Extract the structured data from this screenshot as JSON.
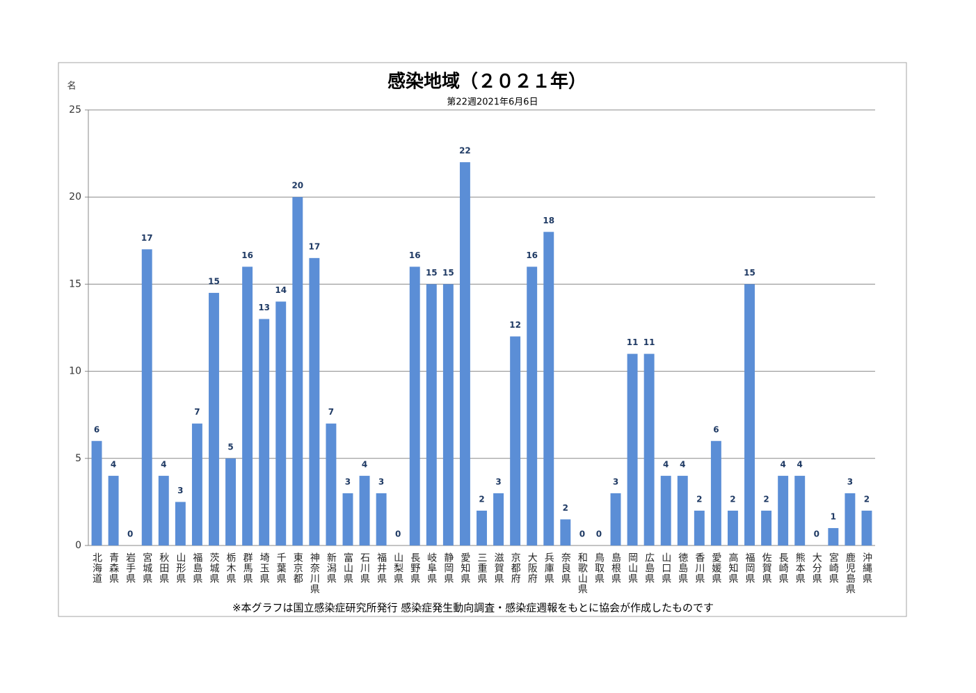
{
  "chart_data": {
    "type": "bar",
    "title": "感染地域（２０２１年）",
    "subtitle": "第22週2021年6月6日",
    "y_label": "名",
    "footnote": "※本グラフは国立感染症研究所発行 感染症発生動向調査・感染症週報をもとに協会が作成したものです",
    "categories": [
      "北海道",
      "青森県",
      "岩手県",
      "宮城県",
      "秋田県",
      "山形県",
      "福島県",
      "茨城県",
      "栃木県",
      "群馬県",
      "埼玉県",
      "千葉県",
      "東京都",
      "神奈川県",
      "新潟県",
      "富山県",
      "石川県",
      "福井県",
      "山梨県",
      "長野県",
      "岐阜県",
      "静岡県",
      "愛知県",
      "三重県",
      "滋賀県",
      "京都府",
      "大阪府",
      "兵庫県",
      "奈良県",
      "和歌山県",
      "鳥取県",
      "島根県",
      "岡山県",
      "広島県",
      "山口県",
      "徳島県",
      "香川県",
      "愛媛県",
      "高知県",
      "福岡県",
      "佐賀県",
      "長崎県",
      "熊本県",
      "大分県",
      "宮崎県",
      "鹿児島県",
      "沖縄県"
    ],
    "values": [
      6,
      4,
      0,
      17,
      4,
      2.5,
      7,
      14.5,
      5,
      16,
      13,
      14,
      20,
      16.5,
      7,
      3,
      4,
      3,
      0,
      16,
      15,
      15,
      22,
      2,
      3,
      12,
      16,
      18,
      1.5,
      0,
      0,
      3,
      11,
      11,
      4,
      4,
      2,
      6,
      2,
      15,
      2,
      4,
      4,
      0,
      1,
      3,
      2
    ],
    "value_labels": [
      "6",
      "4",
      "0",
      "17",
      "4",
      "3",
      "7",
      "15",
      "5",
      "16",
      "13",
      "14",
      "20",
      "17",
      "7",
      "3",
      "4",
      "3",
      "0",
      "16",
      "15",
      "15",
      "22",
      "2",
      "3",
      "12",
      "16",
      "18",
      "2",
      "0",
      "0",
      "3",
      "11",
      "11",
      "4",
      "4",
      "2",
      "6",
      "2",
      "15",
      "2",
      "4",
      "4",
      "0",
      "1",
      "3",
      "2"
    ],
    "color": "#5b8ed6",
    "ylim": [
      0,
      25
    ],
    "yticks": [
      0,
      5,
      10,
      15,
      20,
      25
    ],
    "grid": true
  }
}
